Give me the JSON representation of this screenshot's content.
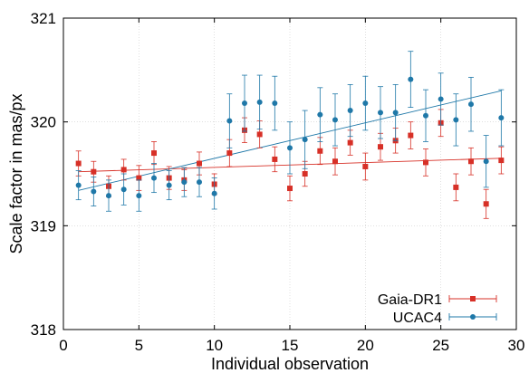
{
  "chart_data": {
    "type": "scatter",
    "xlabel": "Individual observation",
    "ylabel": "Scale factor in mas/px",
    "xlim": [
      0,
      30
    ],
    "ylim": [
      318,
      321
    ],
    "xticks": [
      0,
      5,
      10,
      15,
      20,
      25,
      30
    ],
    "yticks": [
      318,
      319,
      320,
      321
    ],
    "grid": true,
    "legend_position": "bottom-right",
    "series": [
      {
        "name": "Gaia-DR1",
        "color": "#d73027",
        "marker": "square",
        "x": [
          1,
          2,
          3,
          4,
          5,
          6,
          7,
          8,
          9,
          10,
          11,
          12,
          13,
          14,
          15,
          16,
          17,
          18,
          19,
          20,
          21,
          22,
          23,
          24,
          25,
          26,
          27,
          28,
          29
        ],
        "y": [
          319.6,
          319.52,
          319.38,
          319.54,
          319.46,
          319.7,
          319.46,
          319.44,
          319.6,
          319.4,
          319.7,
          319.92,
          319.88,
          319.64,
          319.36,
          319.5,
          319.72,
          319.62,
          319.8,
          319.57,
          319.76,
          319.82,
          319.87,
          319.61,
          319.99,
          319.37,
          319.62,
          319.21,
          319.63
        ],
        "err": [
          0.12,
          0.1,
          0.1,
          0.1,
          0.12,
          0.11,
          0.11,
          0.1,
          0.11,
          0.1,
          0.13,
          0.12,
          0.13,
          0.12,
          0.12,
          0.12,
          0.13,
          0.13,
          0.12,
          0.13,
          0.13,
          0.12,
          0.13,
          0.13,
          0.13,
          0.13,
          0.13,
          0.14,
          0.13
        ],
        "fit": [
          319.52,
          319.65
        ]
      },
      {
        "name": "UCAC4",
        "color": "#1f78a8",
        "marker": "circle",
        "x": [
          1,
          2,
          3,
          4,
          5,
          6,
          7,
          8,
          9,
          10,
          11,
          12,
          13,
          14,
          15,
          16,
          17,
          18,
          19,
          20,
          21,
          22,
          23,
          24,
          25,
          26,
          27,
          28,
          29
        ],
        "y": [
          319.39,
          319.33,
          319.29,
          319.35,
          319.29,
          319.46,
          319.39,
          319.42,
          319.42,
          319.31,
          320.01,
          320.18,
          320.19,
          320.18,
          319.75,
          319.83,
          320.07,
          320.02,
          320.11,
          320.18,
          320.09,
          320.09,
          320.41,
          320.06,
          320.22,
          320.02,
          320.17,
          319.62,
          320.04
        ],
        "err": [
          0.14,
          0.14,
          0.15,
          0.15,
          0.15,
          0.14,
          0.14,
          0.14,
          0.14,
          0.15,
          0.26,
          0.27,
          0.26,
          0.26,
          0.25,
          0.28,
          0.26,
          0.25,
          0.25,
          0.26,
          0.25,
          0.27,
          0.27,
          0.25,
          0.25,
          0.25,
          0.26,
          0.25,
          0.27
        ],
        "fit": [
          319.34,
          320.3
        ]
      }
    ]
  }
}
